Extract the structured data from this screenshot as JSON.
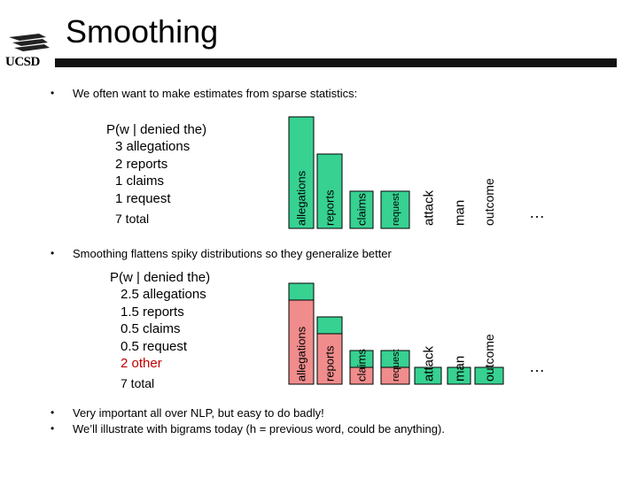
{
  "slide": {
    "title": "Smoothing",
    "logo_text": "UCSD"
  },
  "bullets": {
    "first": "We often want to make estimates from sparse statistics:",
    "second": "Smoothing flattens spiky distributions so they generalize better",
    "third": "Very important all over NLP, but easy to do badly!",
    "fourth": "We’ll illustrate with bigrams today (h = previous word, could be anything)."
  },
  "block1": {
    "heading": "P(w | denied the)",
    "lines": [
      "3 allegations",
      "2 reports",
      "1 claims",
      "1 request"
    ],
    "total": "7 total"
  },
  "block2": {
    "heading": "P(w | denied the)",
    "lines": [
      "2.5 allegations",
      "1.5 reports",
      "0.5 claims",
      "0.5 request"
    ],
    "other": "2 other",
    "total": "7 total"
  },
  "chart_data": [
    {
      "type": "bar",
      "categories": [
        "allegations",
        "reports",
        "claims",
        "request",
        "attack",
        "man",
        "outcome",
        "…"
      ],
      "values": [
        3,
        2,
        1,
        1,
        0,
        0,
        0,
        0
      ],
      "colors": {
        "bar": "#37d192",
        "outline": "#000000"
      }
    },
    {
      "type": "bar",
      "categories": [
        "allegations",
        "reports",
        "claims",
        "request",
        "attack",
        "man",
        "outcome",
        "…"
      ],
      "series": [
        {
          "values": [
            2.5,
            1.5,
            0.5,
            0.5,
            0,
            0,
            0,
            0
          ],
          "color": "#f08c8c"
        },
        {
          "values": [
            0.5,
            0.5,
            0.5,
            0.5,
            0.5,
            0.5,
            0.5,
            0
          ],
          "color": "#37d192"
        }
      ]
    }
  ]
}
